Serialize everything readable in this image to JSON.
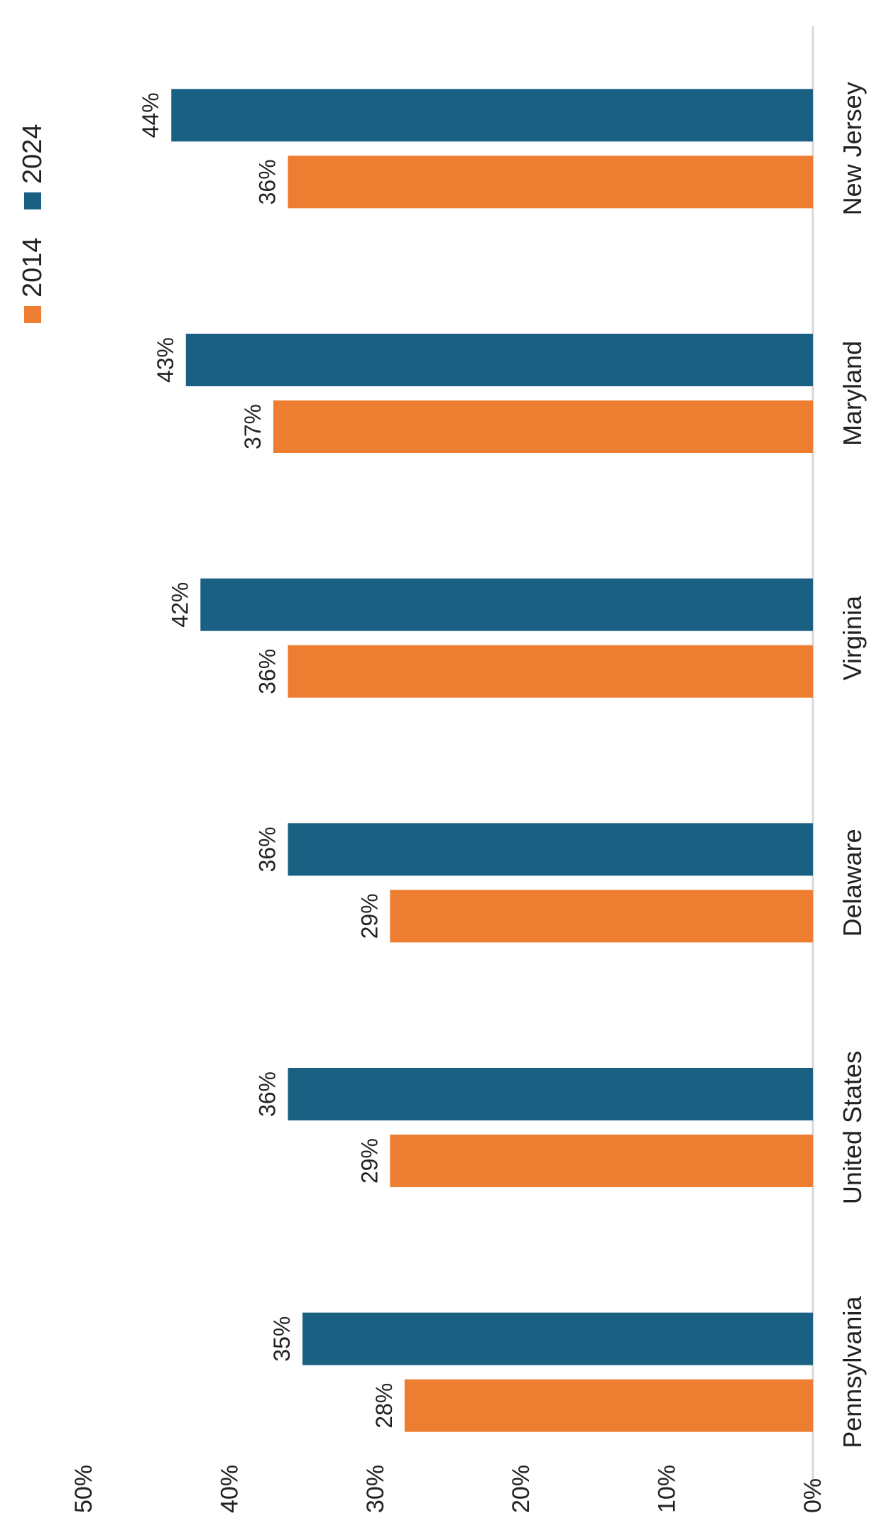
{
  "chart_data": {
    "type": "bar",
    "orientation": "vertical-rotated",
    "title": "",
    "xlabel": "",
    "ylabel": "",
    "categories": [
      "Pennsylvania",
      "United States",
      "Delaware",
      "Virginia",
      "Maryland",
      "New Jersey"
    ],
    "series": [
      {
        "name": "2014",
        "color": "#ED7D31",
        "values": [
          0.28,
          0.29,
          0.29,
          0.36,
          0.37,
          0.36
        ],
        "labels": [
          "28%",
          "29%",
          "29%",
          "36%",
          "37%",
          "36%"
        ]
      },
      {
        "name": "2024",
        "color": "#1A6082",
        "values": [
          0.35,
          0.36,
          0.36,
          0.42,
          0.43,
          0.44
        ],
        "labels": [
          "35%",
          "36%",
          "36%",
          "42%",
          "43%",
          "44%"
        ]
      }
    ],
    "value_axis": {
      "min": 0,
      "max": 0.5,
      "ticks": [
        0,
        0.1,
        0.2,
        0.3,
        0.4,
        0.5
      ],
      "tick_labels": [
        "0%",
        "10%",
        "20%",
        "30%",
        "40%",
        "50%"
      ]
    },
    "gridlines": false,
    "legend_position": "top-right"
  },
  "colors": {
    "axis_line": "#D9D9D9",
    "text": "#222222"
  }
}
